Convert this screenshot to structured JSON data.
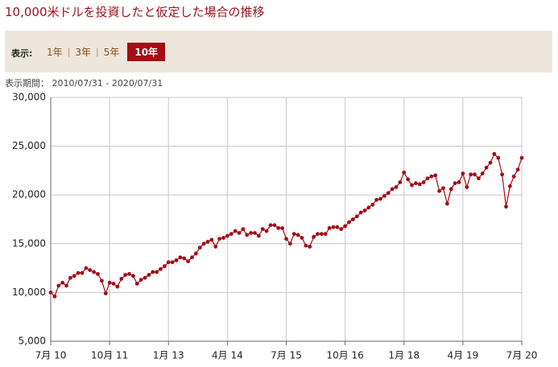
{
  "ui": {
    "title": "10,000米ドルを投資したと仮定した場合の推移",
    "display_label": "表示:",
    "tabs": [
      "1年",
      "3年",
      "5年",
      "10年"
    ],
    "active_tab": 3,
    "period": "表示期間： 2010/07/31 - 2020/07/31"
  },
  "chart_data": {
    "type": "line",
    "color": "#a30d14",
    "grid": true,
    "ylim": [
      5000,
      30000
    ],
    "yticks": [
      {
        "value": 5000,
        "label": "5,000"
      },
      {
        "value": 10000,
        "label": "10,000"
      },
      {
        "value": 15000,
        "label": "15,000"
      },
      {
        "value": 20000,
        "label": "20,000"
      },
      {
        "value": 25000,
        "label": "25,000"
      },
      {
        "value": 30000,
        "label": "30,000"
      }
    ],
    "categories": [
      "7月 10",
      null,
      null,
      null,
      null,
      null,
      null,
      null,
      null,
      null,
      null,
      null,
      null,
      null,
      null,
      "10月 11",
      null,
      null,
      null,
      null,
      null,
      null,
      null,
      null,
      null,
      null,
      null,
      null,
      null,
      null,
      "1月 13",
      null,
      null,
      null,
      null,
      null,
      null,
      null,
      null,
      null,
      null,
      null,
      null,
      null,
      null,
      "4月 14",
      null,
      null,
      null,
      null,
      null,
      null,
      null,
      null,
      null,
      null,
      null,
      null,
      null,
      null,
      "7月 15",
      null,
      null,
      null,
      null,
      null,
      null,
      null,
      null,
      null,
      null,
      null,
      null,
      null,
      null,
      "10月 16",
      null,
      null,
      null,
      null,
      null,
      null,
      null,
      null,
      null,
      null,
      null,
      null,
      null,
      null,
      "1月 18",
      null,
      null,
      null,
      null,
      null,
      null,
      null,
      null,
      null,
      null,
      null,
      null,
      null,
      null,
      "4月 19",
      null,
      null,
      null,
      null,
      null,
      null,
      null,
      null,
      null,
      null,
      null,
      null,
      null,
      null,
      "7月 20"
    ],
    "values": [
      10000,
      9600,
      10700,
      11000,
      10700,
      11500,
      11700,
      12000,
      12000,
      12500,
      12300,
      12100,
      11900,
      11200,
      9900,
      11000,
      10900,
      10600,
      11400,
      11800,
      11900,
      11700,
      10900,
      11300,
      11500,
      11800,
      12100,
      12100,
      12400,
      12700,
      13100,
      13100,
      13300,
      13600,
      13500,
      13200,
      13600,
      14000,
      14600,
      15000,
      15200,
      15400,
      14700,
      15500,
      15600,
      15800,
      16000,
      16300,
      16100,
      16500,
      15900,
      16100,
      16100,
      15800,
      16500,
      16300,
      16900,
      16900,
      16600,
      16600,
      15500,
      15000,
      16000,
      15900,
      15600,
      14800,
      14700,
      15700,
      16000,
      16000,
      16000,
      16600,
      16700,
      16700,
      16500,
      16800,
      17200,
      17500,
      17800,
      18200,
      18400,
      18700,
      19000,
      19500,
      19600,
      19900,
      20200,
      20600,
      20800,
      21300,
      22300,
      21600,
      21000,
      21200,
      21100,
      21300,
      21700,
      21900,
      22000,
      20400,
      20700,
      19100,
      20600,
      21200,
      21300,
      22200,
      20800,
      22100,
      22100,
      21700,
      22200,
      22800,
      23300,
      24200,
      23800,
      22100,
      18800,
      20900,
      21900,
      22600,
      23800
    ]
  }
}
